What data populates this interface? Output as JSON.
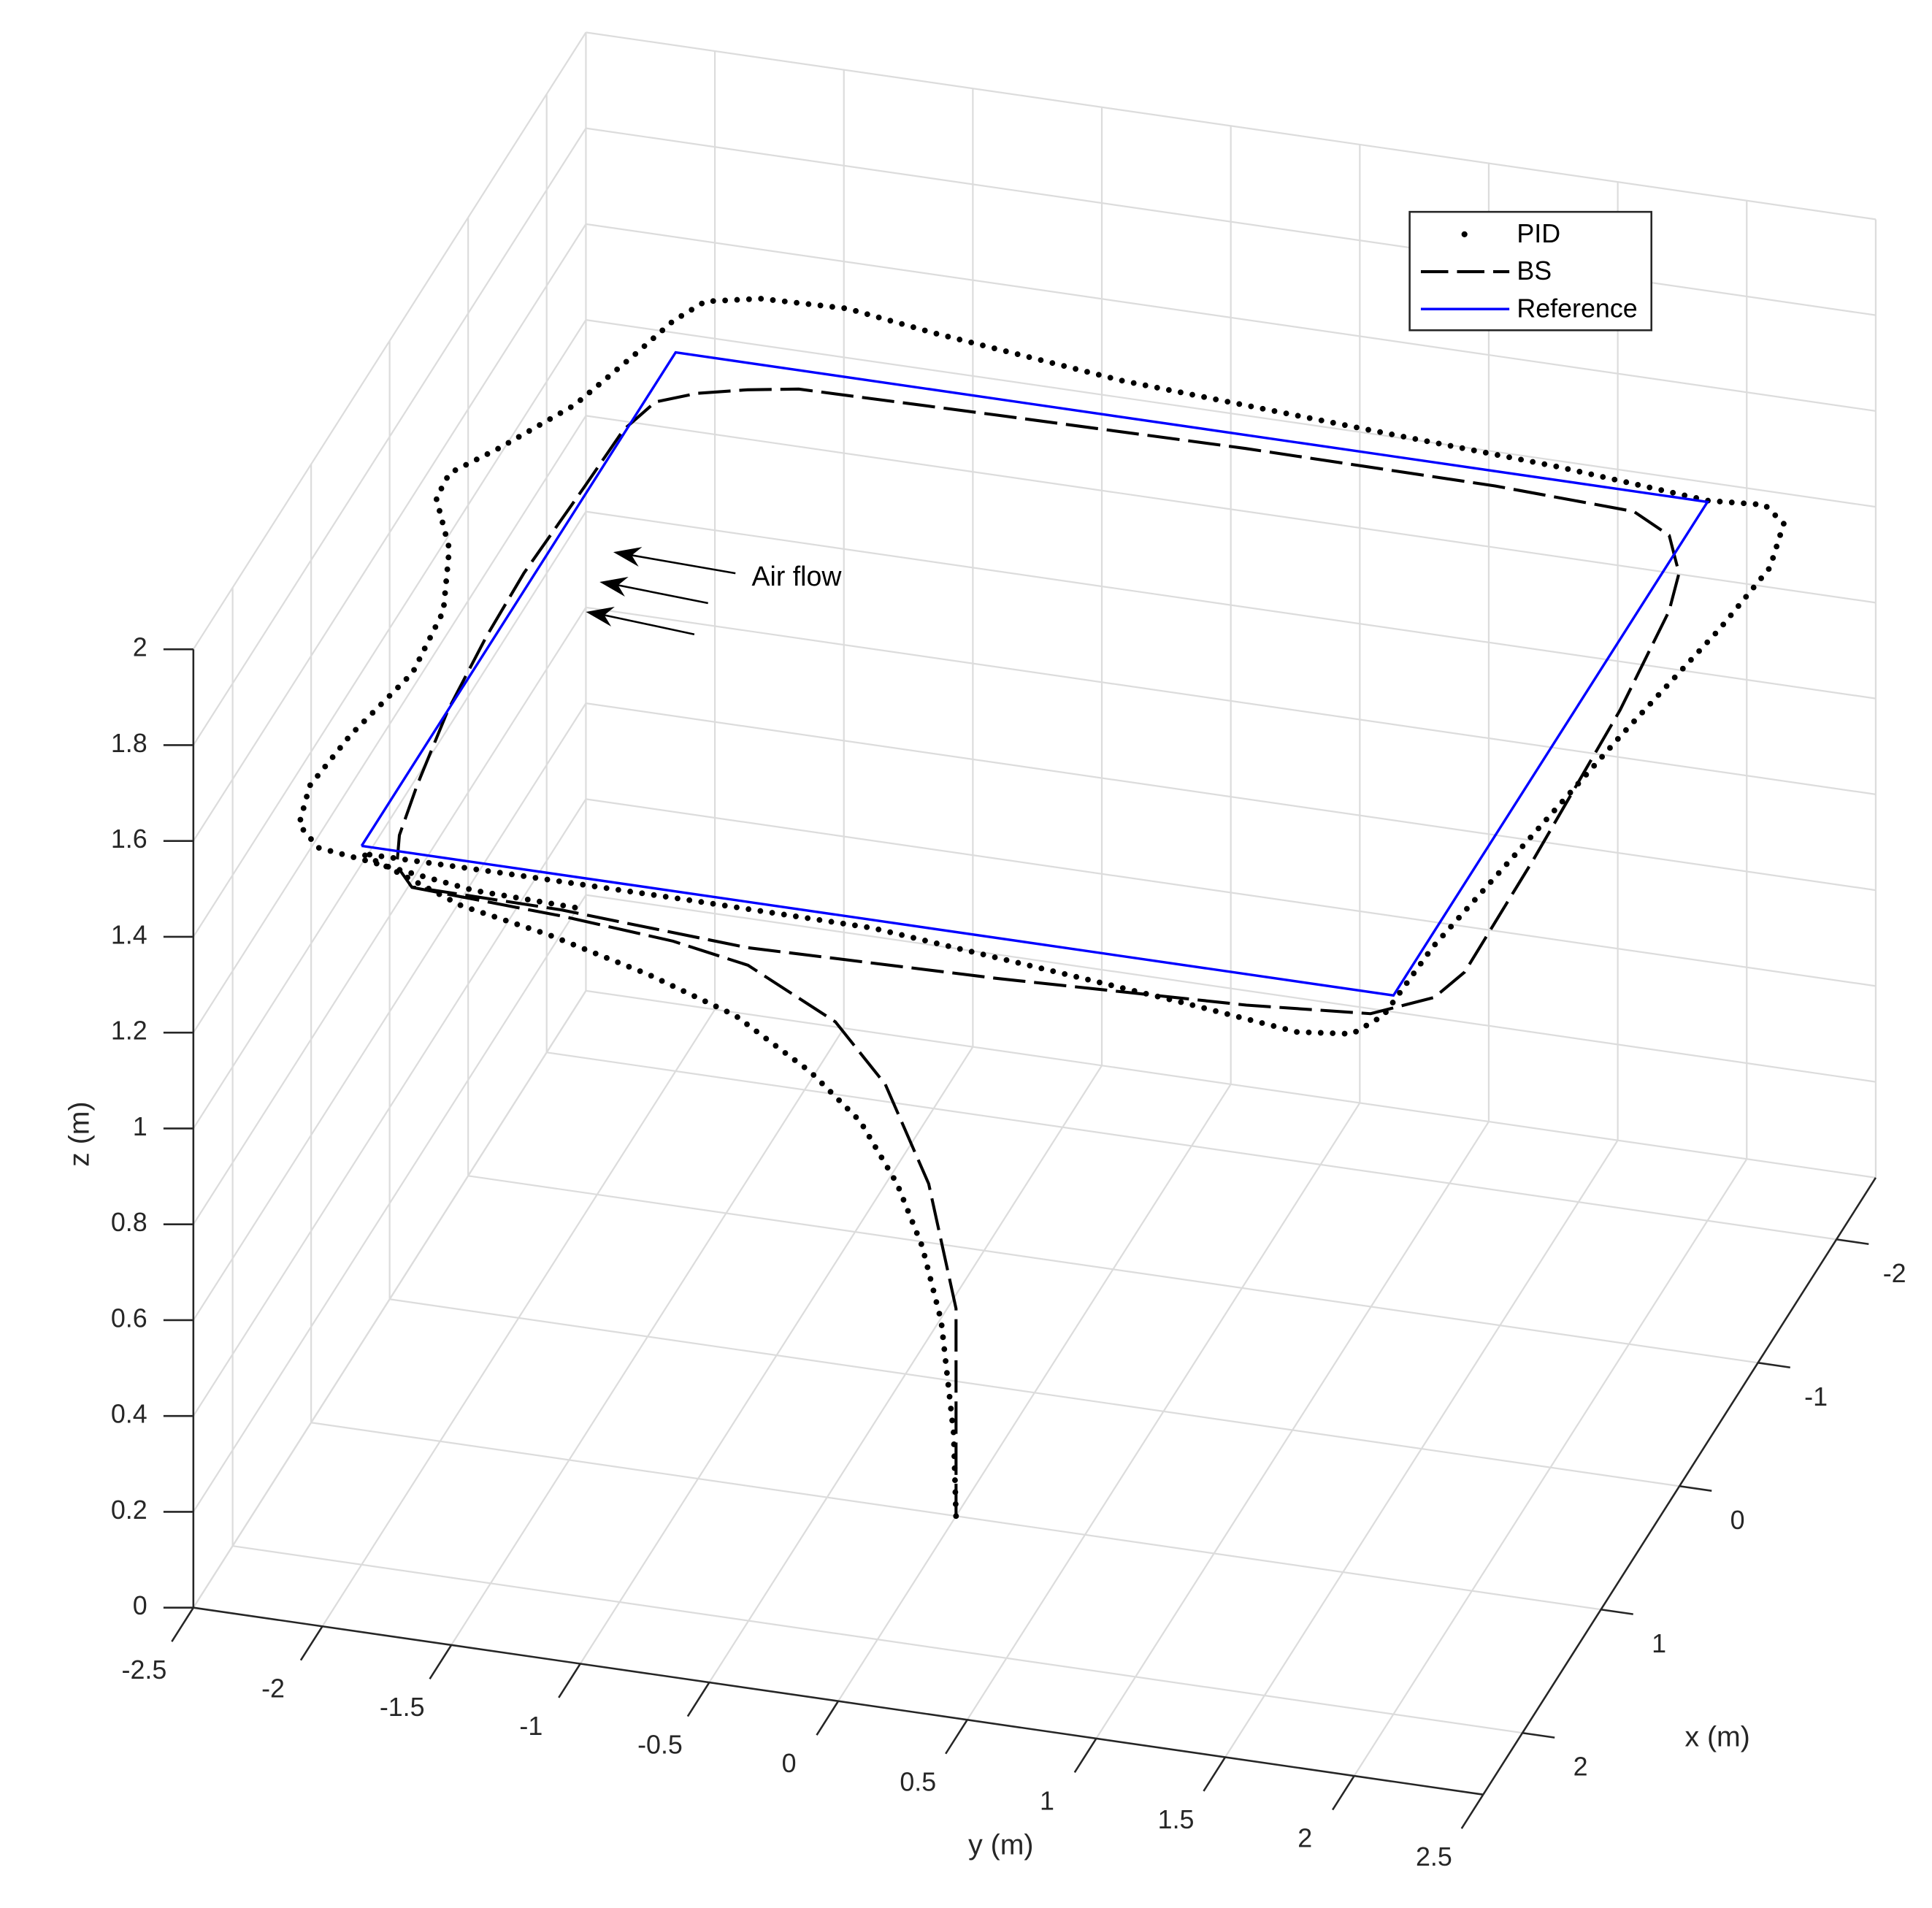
{
  "chart_data": {
    "type": "line3d",
    "xlabel": "x (m)",
    "ylabel": "y (m)",
    "zlabel": "z (m)",
    "xlim": [
      -2.5,
      2.5
    ],
    "ylim": [
      -2.5,
      2.5
    ],
    "zlim": [
      0,
      2
    ],
    "xticks": [
      -2,
      -1,
      0,
      1,
      2
    ],
    "yticks": [
      -2.5,
      -2,
      -1.5,
      -1,
      -0.5,
      0,
      0.5,
      1,
      1.5,
      2,
      2.5
    ],
    "zticks": [
      0,
      0.2,
      0.4,
      0.6,
      0.8,
      1,
      1.2,
      1.4,
      1.6,
      1.8,
      2
    ],
    "grid": true,
    "legend_position": "northeast",
    "annotation": "Air flow",
    "series": [
      {
        "name": "PID",
        "color": "#000000",
        "style": "dotted",
        "x": [
          1,
          1.004,
          1.025,
          1.057,
          1.099,
          1.161,
          1.245,
          1.371,
          1.518,
          1.686,
          1.832,
          2.0,
          2.05,
          2.05,
          2.06,
          2.19,
          2.28,
          2.375,
          2.33,
          2.16,
          1.6,
          0.77,
          -0.17,
          -1.07,
          -1.58,
          -1.92,
          -2.04,
          -2.01,
          -2.1,
          -2.17,
          -2.27,
          -2.42,
          -2.51,
          -2.49,
          -2.41,
          -2.23,
          -1.94,
          -1.5,
          -1.1,
          -0.86,
          -0.66,
          -0.3,
          0.17,
          0.66,
          1.19,
          1.61,
          1.91,
          2.06,
          2.1,
          2.21,
          2.23
        ],
        "y": [
          0,
          -0.008,
          -0.05,
          -0.114,
          -0.198,
          -0.322,
          -0.49,
          -0.742,
          -1.036,
          -1.372,
          -1.664,
          -2.0,
          -1.45,
          -0.73,
          0,
          0.76,
          1.27,
          1.74,
          1.94,
          2.01,
          2.03,
          2.12,
          2.22,
          2.33,
          2.37,
          2.32,
          2.21,
          2,
          1.39,
          0.64,
          -0.35,
          -1.12,
          -1.49,
          -1.82,
          -2.01,
          -2.08,
          -2.14,
          -2.24,
          -2.41,
          -2.53,
          -2.52,
          -2.36,
          -2.24,
          -2.21,
          -2.29,
          -2.32,
          -2.27,
          -2.15,
          -1.97,
          -1.5,
          -1.06
        ],
        "z": [
          0,
          0.173,
          0.41,
          0.569,
          0.703,
          0.84,
          0.952,
          1.082,
          1.183,
          1.283,
          1.358,
          1.484,
          1.5,
          1.5,
          1.5,
          1.5,
          1.5,
          1.5,
          1.5,
          1.5,
          1.5,
          1.5,
          1.5,
          1.5,
          1.5,
          1.5,
          1.5,
          1.5,
          1.5,
          1.5,
          1.5,
          1.5,
          1.5,
          1.5,
          1.5,
          1.5,
          1.5,
          1.5,
          1.5,
          1.5,
          1.5,
          1.5,
          1.5,
          1.5,
          1.5,
          1.5,
          1.5,
          1.5,
          1.5,
          1.5,
          1.5
        ]
      },
      {
        "name": "BS",
        "color": "#000000",
        "style": "dashed",
        "x": [
          1,
          1,
          1,
          1.046,
          1.119,
          1.203,
          1.35,
          1.476,
          1.665,
          1.916,
          2.25,
          2.26,
          2.34,
          2.3,
          2.23,
          2.16,
          1.97,
          1.75,
          0.84,
          -0.36,
          -1.15,
          -1.44,
          -1.71,
          -1.85,
          -1.89,
          -1.9,
          -1.88,
          -1.86,
          -1.8,
          -1.72,
          -1.61,
          -1.37,
          -0.91,
          -0.2,
          0.31,
          0.9,
          1.49,
          1.88,
          2.11,
          2.25
        ],
        "y": [
          0,
          0,
          0,
          -0.092,
          -0.238,
          -0.406,
          -0.7,
          -0.952,
          -1.33,
          -1.83,
          -1.73,
          -1.15,
          -0.4,
          0.555,
          1.5,
          1.96,
          2.15,
          2.2,
          2.19,
          2.16,
          2.11,
          2.06,
          1.94,
          1.76,
          1.21,
          0.24,
          -0.72,
          -1.48,
          -1.66,
          -1.83,
          -1.96,
          -2.01,
          -2.02,
          -2.04,
          -2.03,
          -2,
          -1.94,
          -1.89,
          -1.83,
          -1.73
        ],
        "z": [
          0,
          0.2,
          0.433,
          0.698,
          0.913,
          1.052,
          1.185,
          1.248,
          1.32,
          1.405,
          1.5,
          1.5,
          1.5,
          1.5,
          1.5,
          1.5,
          1.5,
          1.5,
          1.5,
          1.5,
          1.5,
          1.5,
          1.5,
          1.5,
          1.5,
          1.5,
          1.5,
          1.5,
          1.5,
          1.5,
          1.5,
          1.5,
          1.5,
          1.5,
          1.5,
          1.5,
          1.5,
          1.5,
          1.5,
          1.5
        ]
      },
      {
        "name": "Reference",
        "color": "#0000ff",
        "style": "solid",
        "x": [
          2,
          -2,
          -2,
          2,
          2
        ],
        "y": [
          -2,
          -2,
          2,
          2,
          -2
        ],
        "z": [
          1.5,
          1.5,
          1.5,
          1.5,
          1.5
        ]
      }
    ]
  }
}
